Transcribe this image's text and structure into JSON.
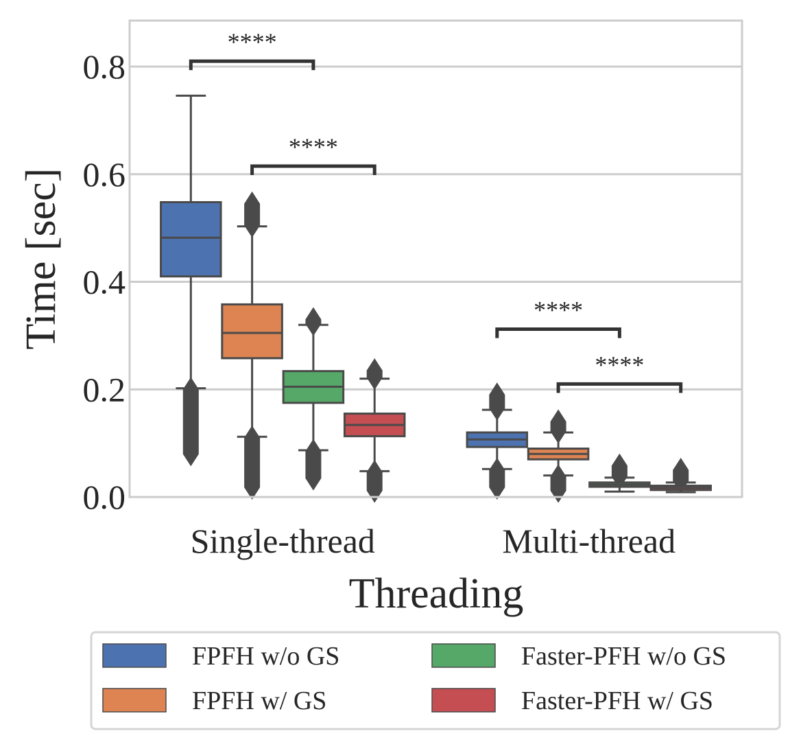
{
  "chart_data": {
    "type": "box",
    "title": "",
    "xlabel": "Threading",
    "ylabel": "Time [sec]",
    "ylim": [
      0,
      0.88
    ],
    "yticks": [
      0.0,
      0.2,
      0.4,
      0.6,
      0.8
    ],
    "ytick_labels": [
      "0.0",
      "0.2",
      "0.4",
      "0.6",
      "0.8"
    ],
    "grid": true,
    "categories": [
      "Single-thread",
      "Multi-thread"
    ],
    "series": [
      {
        "name": "FPFH w/o GS",
        "color": "#4c72b0",
        "boxes": [
          {
            "whisker_low": 0.202,
            "q1": 0.41,
            "median": 0.482,
            "q3": 0.548,
            "whisker_high": 0.746,
            "outliers_low": [
              0.08,
              0.2
            ],
            "outliers_high": []
          },
          {
            "whisker_low": 0.052,
            "q1": 0.093,
            "median": 0.107,
            "q3": 0.12,
            "whisker_high": 0.162,
            "outliers_low": [
              0.018,
              0.05
            ],
            "outliers_high": [
              0.165,
              0.19
            ]
          }
        ]
      },
      {
        "name": "FPFH w/ GS",
        "color": "#dd8452",
        "boxes": [
          {
            "whisker_low": 0.112,
            "q1": 0.258,
            "median": 0.305,
            "q3": 0.358,
            "whisker_high": 0.503,
            "outliers_low": [
              0.018,
              0.11
            ],
            "outliers_high": [
              0.505,
              0.545
            ]
          },
          {
            "whisker_low": 0.04,
            "q1": 0.07,
            "median": 0.08,
            "q3": 0.09,
            "whisker_high": 0.12,
            "outliers_low": [
              0.012,
              0.038
            ],
            "outliers_high": [
              0.122,
              0.14
            ]
          }
        ]
      },
      {
        "name": "Faster-PFH w/o GS",
        "color": "#55a868",
        "boxes": [
          {
            "whisker_low": 0.087,
            "q1": 0.175,
            "median": 0.205,
            "q3": 0.234,
            "whisker_high": 0.32,
            "outliers_low": [
              0.035,
              0.085
            ],
            "outliers_high": [
              0.322,
              0.33
            ]
          },
          {
            "whisker_low": 0.01,
            "q1": 0.019,
            "median": 0.023,
            "q3": 0.027,
            "whisker_high": 0.036,
            "outliers_low": [],
            "outliers_high": [
              0.038,
              0.058
            ]
          }
        ]
      },
      {
        "name": "Faster-PFH w/ GS",
        "color": "#c44e52",
        "boxes": [
          {
            "whisker_low": 0.048,
            "q1": 0.113,
            "median": 0.134,
            "q3": 0.155,
            "whisker_high": 0.22,
            "outliers_low": [
              0.012,
              0.046
            ],
            "outliers_high": [
              0.222,
              0.235
            ]
          },
          {
            "whisker_low": 0.009,
            "q1": 0.013,
            "median": 0.017,
            "q3": 0.021,
            "whisker_high": 0.027,
            "outliers_low": [],
            "outliers_high": [
              0.03,
              0.05
            ]
          }
        ]
      }
    ],
    "annotations": [
      {
        "text": "****",
        "category_index": 0,
        "from_series": 0,
        "to_series": 2,
        "y": 0.81
      },
      {
        "text": "****",
        "category_index": 0,
        "from_series": 1,
        "to_series": 3,
        "y": 0.615
      },
      {
        "text": "****",
        "category_index": 1,
        "from_series": 0,
        "to_series": 2,
        "y": 0.312
      },
      {
        "text": "****",
        "category_index": 1,
        "from_series": 1,
        "to_series": 3,
        "y": 0.21
      }
    ],
    "legend": {
      "position": "bottom",
      "columns": 2
    }
  }
}
